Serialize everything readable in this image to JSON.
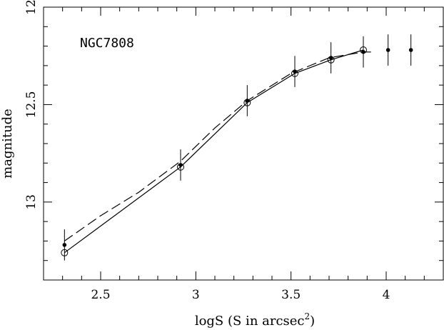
{
  "chart_data": {
    "type": "scatter",
    "xlabel": "logS (S in arcsec",
    "xlabel_sup": "2",
    "xlabel_close": ")",
    "ylabel": "magnitude",
    "xlim": [
      2.2,
      4.3
    ],
    "ylim": [
      13.4,
      12.0
    ],
    "y_inverted": true,
    "x_ticks": [
      2.5,
      3,
      3.5,
      4
    ],
    "x_tick_labels": [
      "2.5",
      "3",
      "3.5",
      "4"
    ],
    "y_ticks": [
      12,
      12.5,
      13
    ],
    "y_tick_labels": [
      "12",
      "12.5",
      "13"
    ],
    "annotation": "NGC7808",
    "grid": false,
    "series": [
      {
        "marker": "filled-circle",
        "error_bars": true,
        "x": [
          2.31,
          2.92,
          3.27,
          3.52,
          3.71,
          3.88,
          4.01,
          4.13
        ],
        "y": [
          13.22,
          12.81,
          12.48,
          12.33,
          12.26,
          12.23,
          12.22,
          12.22
        ],
        "err": [
          0.08,
          0.08,
          0.08,
          0.08,
          0.08,
          0.08,
          0.08,
          0.08
        ]
      },
      {
        "marker": "open-circle",
        "line": "solid",
        "x": [
          2.31,
          2.92,
          3.27,
          3.52,
          3.71,
          3.88
        ],
        "y": [
          13.26,
          12.82,
          12.49,
          12.34,
          12.27,
          12.22
        ]
      },
      {
        "marker": "none",
        "line": "dashed",
        "x": [
          2.31,
          2.5,
          2.7,
          2.92,
          3.1,
          3.27,
          3.5,
          3.7,
          3.88,
          3.92
        ],
        "y": [
          13.2,
          13.07,
          12.95,
          12.79,
          12.62,
          12.48,
          12.34,
          12.26,
          12.23,
          12.23
        ]
      }
    ]
  }
}
